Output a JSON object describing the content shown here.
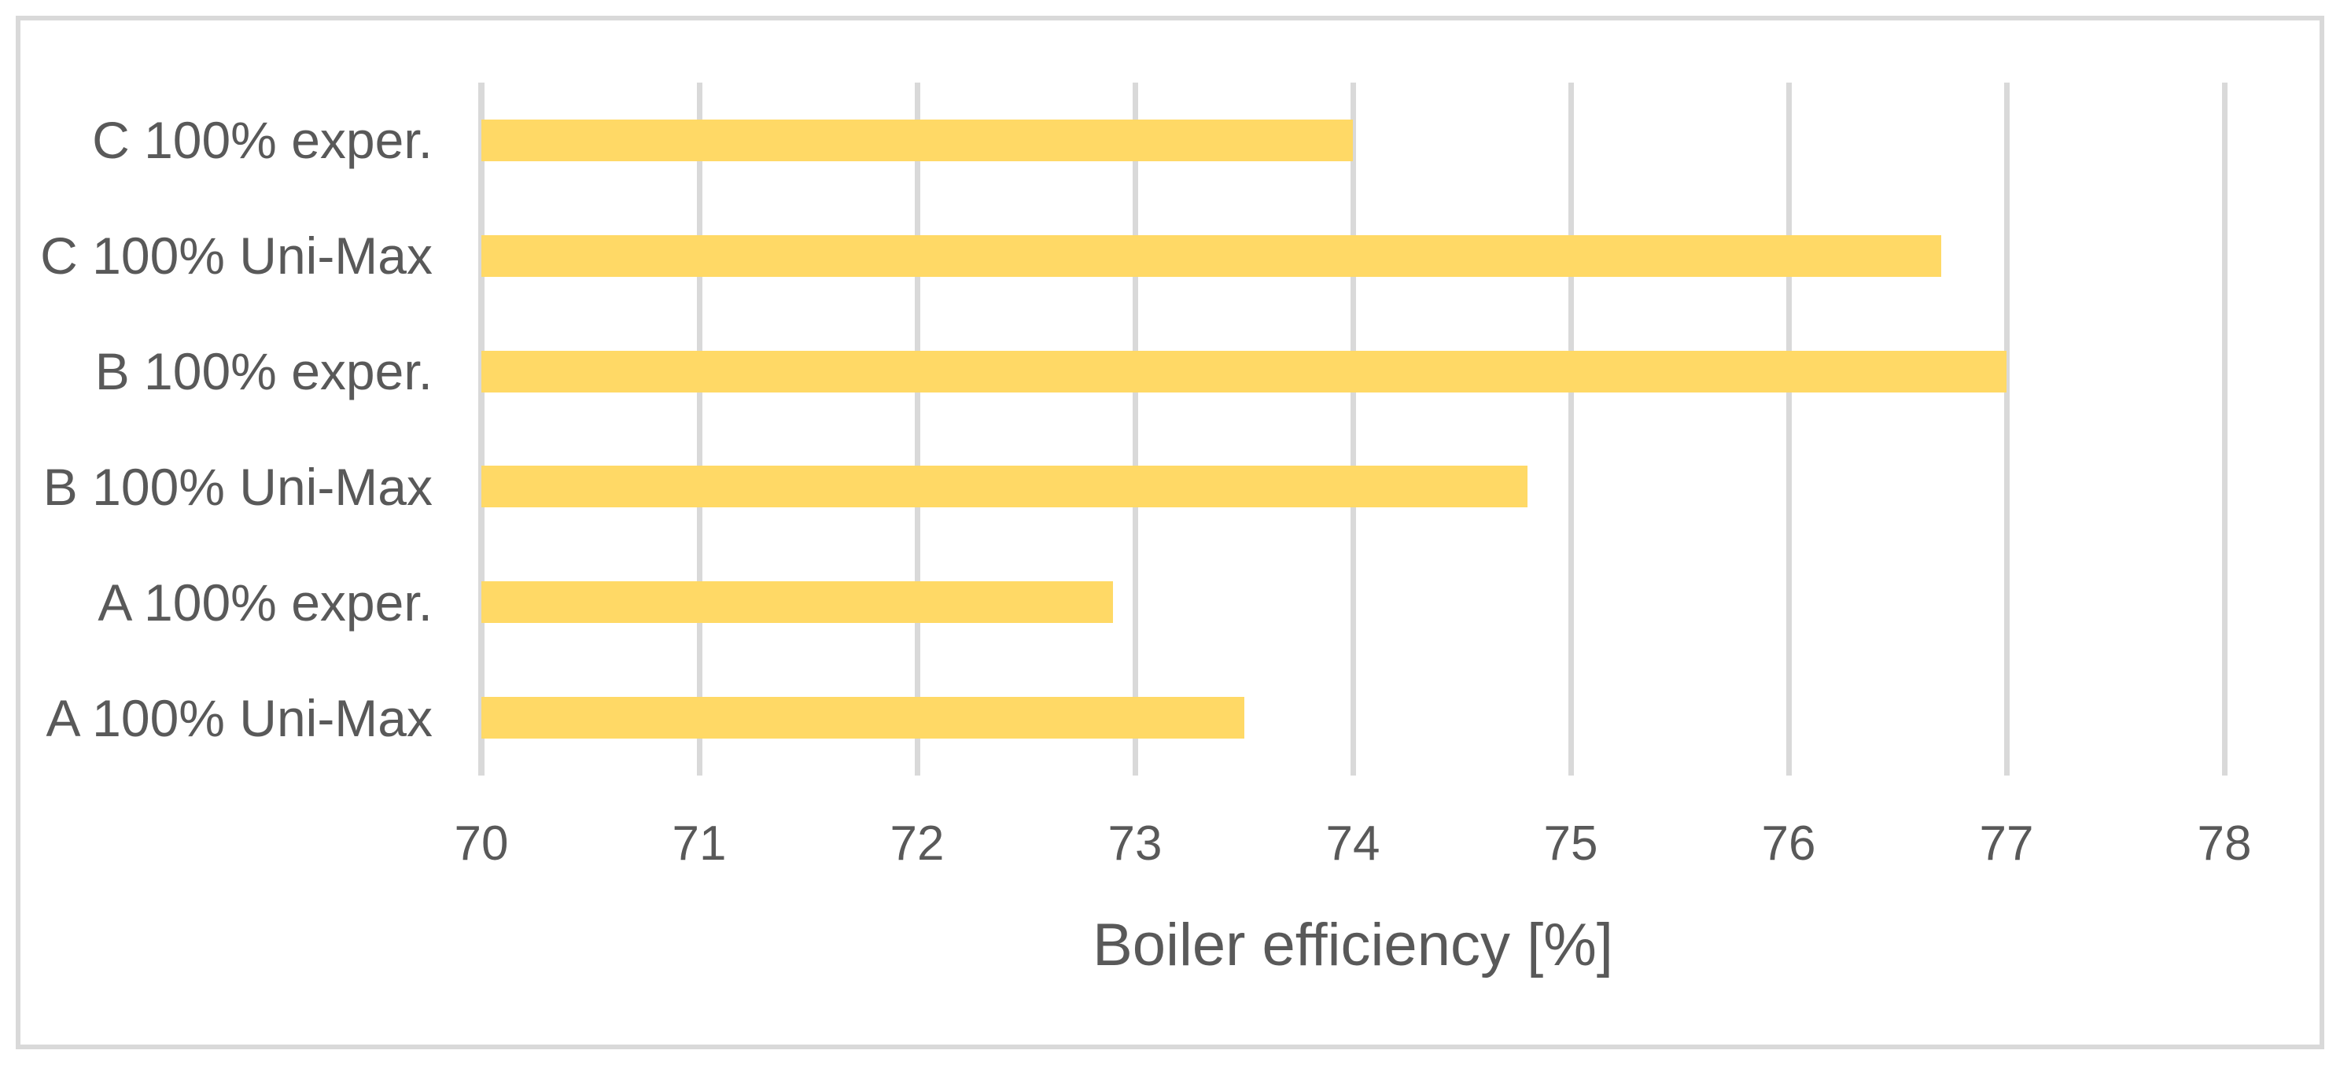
{
  "chart_data": {
    "type": "bar",
    "orientation": "horizontal",
    "title": "",
    "xlabel": "Boiler efficiency [%]",
    "ylabel": "",
    "categories": [
      "C 100% exper.",
      "C 100% Uni-Max",
      "B 100% exper.",
      "B 100% Uni-Max",
      "A 100% exper.",
      "A 100% Uni-Max"
    ],
    "values": [
      74.0,
      76.7,
      77.0,
      74.8,
      72.9,
      73.5
    ],
    "xlim": [
      70,
      78
    ],
    "xticks": [
      70,
      71,
      72,
      73,
      74,
      75,
      76,
      77,
      78
    ],
    "grid": true,
    "legend": false,
    "colors": {
      "bar": "#FFD966",
      "gridline": "#D9D9D9",
      "axis_line": "#D9D9D9",
      "text": "#595959",
      "frame": "#D9D9D9",
      "background": "#FFFFFF"
    }
  }
}
